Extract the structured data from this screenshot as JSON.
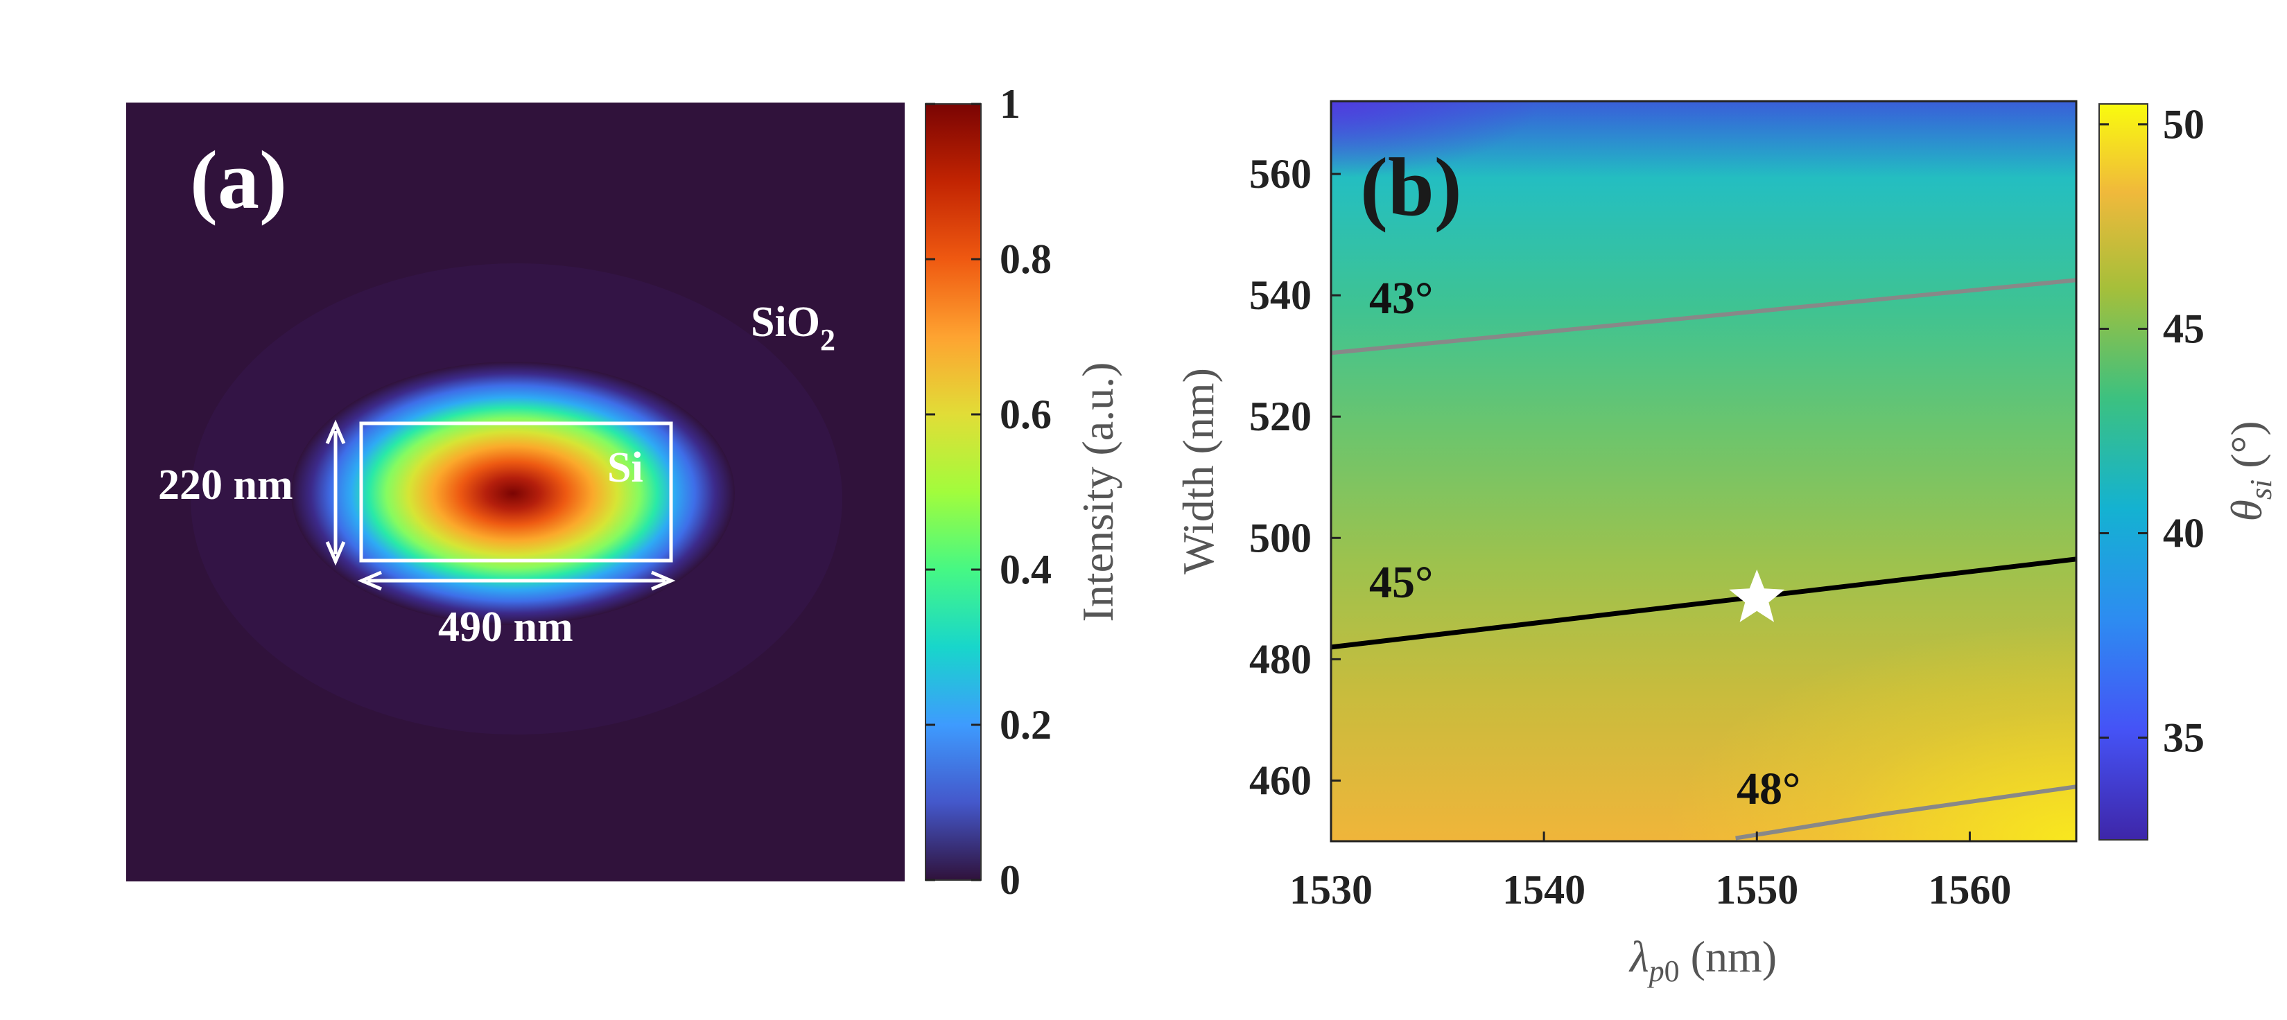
{
  "chart_data": [
    {
      "type": "heatmap",
      "panel_label": "(a)",
      "colorbar": {
        "label": "Intensity (a.u.)",
        "ticks": [
          "0",
          "0.2",
          "0.4",
          "0.6",
          "0.8",
          "1"
        ],
        "range": [
          0,
          1
        ],
        "colormap": "jet"
      },
      "mode_profile": {
        "peak_intensity": 1,
        "background_intensity": 0
      },
      "annotations": {
        "cladding": "SiO",
        "cladding_sub": "2",
        "core": "Si",
        "height": "220 nm",
        "width": "490 nm"
      }
    },
    {
      "type": "heatmap",
      "panel_label": "(b)",
      "xlabel": "λ_p0 (nm)",
      "ylabel": "Width (nm)",
      "xlim": [
        1530,
        1565
      ],
      "ylim": [
        450,
        572
      ],
      "x_ticks": [
        1530,
        1540,
        1550,
        1560
      ],
      "y_ticks": [
        460,
        480,
        500,
        520,
        540,
        560
      ],
      "colorbar": {
        "label": "θ_si (°)",
        "ticks": [
          "35",
          "40",
          "45",
          "50"
        ],
        "range": [
          32.5,
          50.5
        ],
        "colormap": "parula"
      },
      "contours": [
        {
          "label": "43°",
          "color": "#888888",
          "points": [
            [
              1530,
              530.5
            ],
            [
              1565,
              542.5
            ]
          ]
        },
        {
          "label": "45°",
          "color": "#000000",
          "points": [
            [
              1530,
              482
            ],
            [
              1565,
              496.5
            ]
          ]
        },
        {
          "label": "48°",
          "color": "#888888",
          "points": [
            [
              1549,
              450.5
            ],
            [
              1556,
              454.5
            ],
            [
              1565,
              459
            ]
          ]
        }
      ],
      "marker": {
        "shape": "star",
        "x": 1550,
        "y": 490
      },
      "contour_label_positions": [
        "43°",
        "45°",
        "48°"
      ]
    }
  ],
  "labels": {
    "a": "(a)",
    "b": "(b)",
    "sio": "SiO",
    "sio_sub": "2",
    "si": "Si",
    "h": "220 nm",
    "w": "490 nm",
    "c43": "43°",
    "c45": "45°",
    "c48": "48°",
    "cb1": "Intensity (a.u.)",
    "ylab": "Width (nm)"
  }
}
